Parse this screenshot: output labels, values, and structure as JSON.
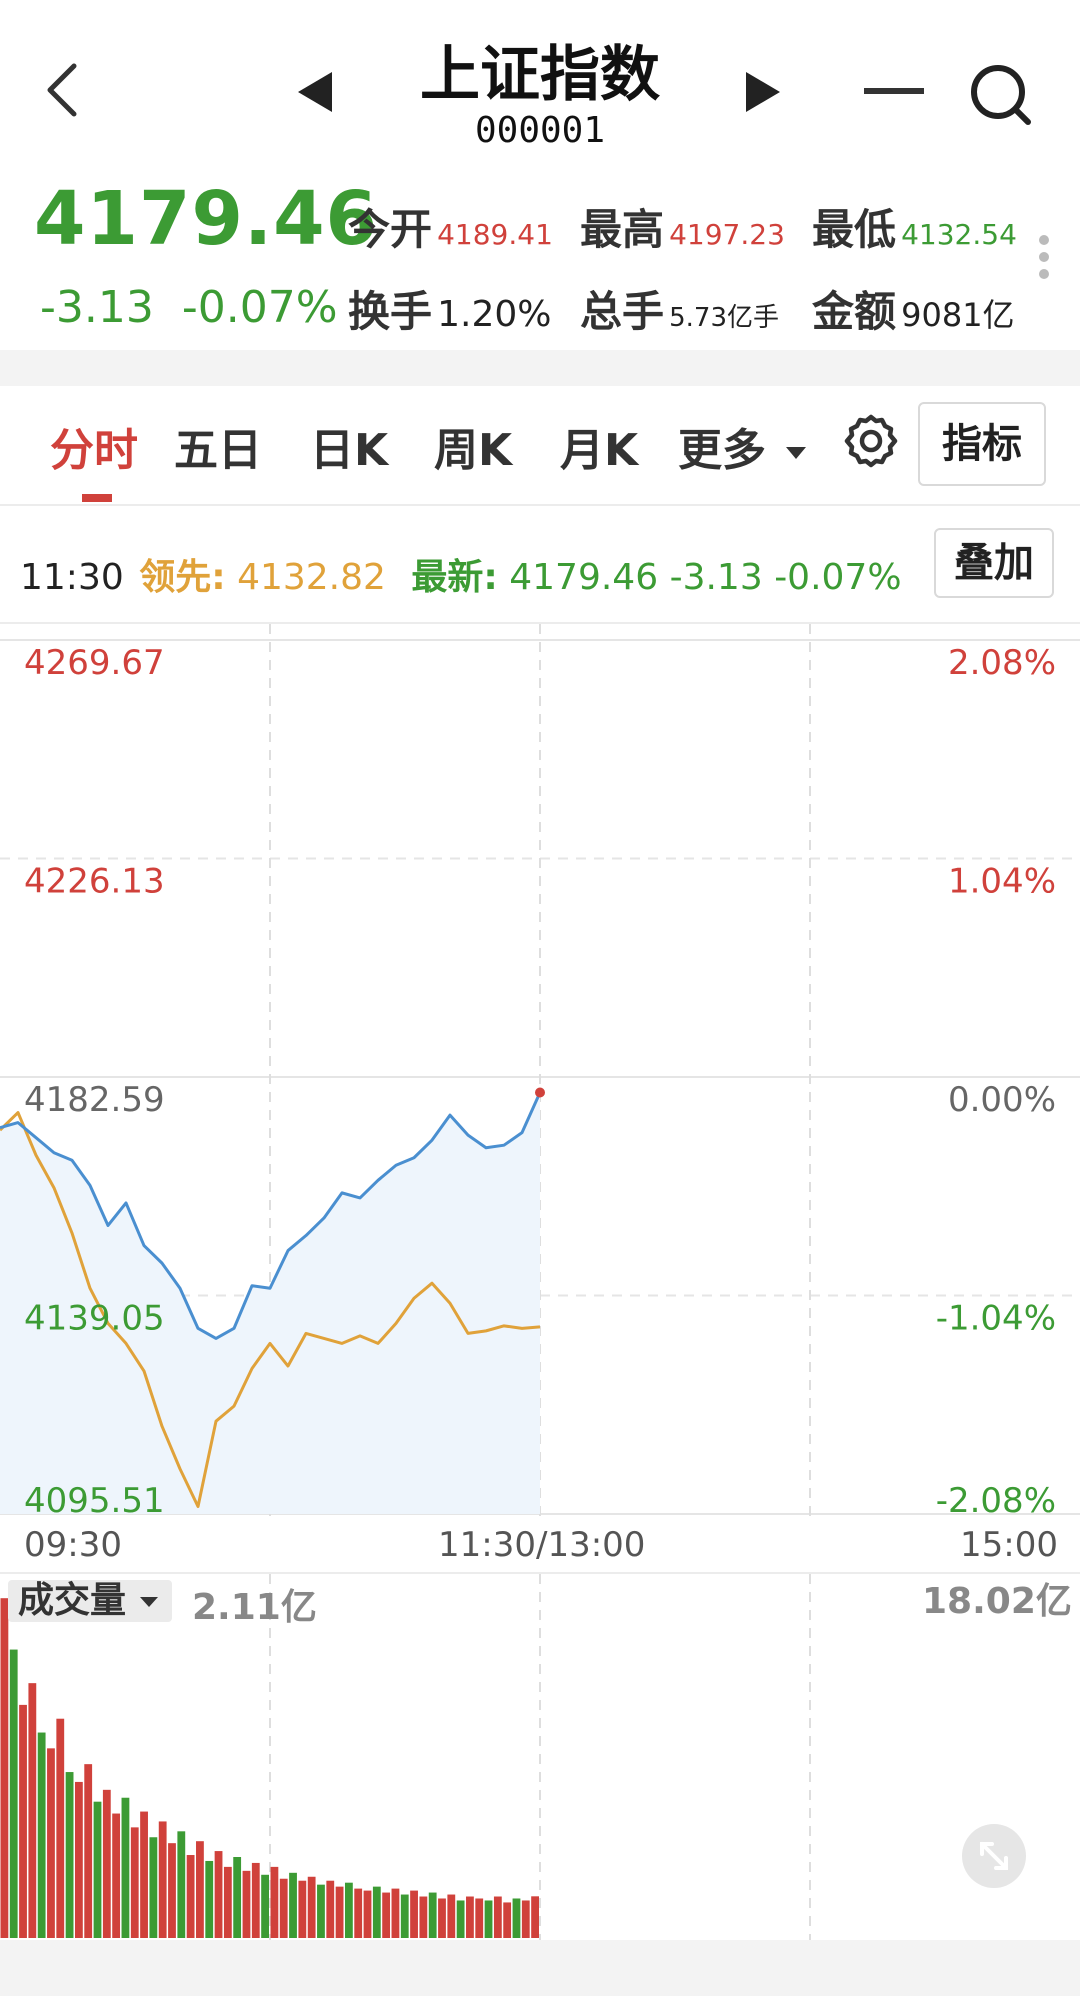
{
  "header": {
    "title": "上证指数",
    "code": "000001"
  },
  "quote": {
    "price": "4179.46",
    "change": "-3.13",
    "change_pct": "-0.07%",
    "open_label": "今开",
    "open_value": "4189.41",
    "high_label": "最高",
    "high_value": "4197.23",
    "low_label": "最低",
    "low_value": "4132.54",
    "turnover_label": "换手",
    "turnover_value": "1.20%",
    "volume_label": "总手",
    "volume_value": "5.73亿手",
    "amount_label": "金额",
    "amount_value": "9081亿"
  },
  "tabs": [
    {
      "label": "分时",
      "active": true
    },
    {
      "label": "五日"
    },
    {
      "label": "日K"
    },
    {
      "label": "周K"
    },
    {
      "label": "月K"
    },
    {
      "label": "更多"
    }
  ],
  "indicator_button": "指标",
  "overlay_button": "叠加",
  "info_line": {
    "time": "11:30",
    "leading_label": "领先:",
    "leading_value": "4132.82",
    "latest_label": "最新:",
    "latest_value": "4179.46",
    "latest_change": "-3.13",
    "latest_pct": "-0.07%"
  },
  "volume_panel": {
    "label": "成交量",
    "current": "2.11亿",
    "max": "18.02亿"
  },
  "colors": {
    "up": "#d0413b",
    "down": "#3c9b34",
    "price_line": "#4a8fd0",
    "leading_line": "#e0a23a",
    "area_fill": "#eef5fc"
  },
  "chart_data": {
    "type": "line",
    "x_ticks": [
      "09:30",
      "11:30/13:00",
      "15:00"
    ],
    "y_left_ticks": [
      "4269.67",
      "4226.13",
      "4182.59",
      "4139.05",
      "4095.51"
    ],
    "y_right_ticks": [
      "2.08%",
      "1.04%",
      "0.00%",
      "-1.04%",
      "-2.08%"
    ],
    "ylim": [
      4095.51,
      4269.67
    ],
    "series": [
      {
        "values": [
          4172.5,
          4173.5,
          4170.5,
          4167.5,
          4166.0,
          4161.0,
          4153.0,
          4157.5,
          4149.0,
          4145.5,
          4140.5,
          4132.5,
          4130.5,
          4132.5,
          4141.0,
          4140.5,
          4148.0,
          4151.0,
          4154.5,
          4159.5,
          4158.5,
          4162.0,
          4165.0,
          4166.5,
          4170.0,
          4175.0,
          4171.0,
          4168.5,
          4169.0,
          4171.5,
          4179.5
        ]
      },
      {
        "values": [
          4172.0,
          4175.5,
          4167.0,
          4160.5,
          4151.5,
          4140.5,
          4133.5,
          4129.5,
          4124.0,
          4113.0,
          4104.5,
          4097.0,
          4114.0,
          4117.0,
          4124.5,
          4129.5,
          4125.0,
          4131.5,
          4130.5,
          4129.5,
          4131.0,
          4129.5,
          4133.5,
          4138.5,
          4141.5,
          4137.5,
          4131.5,
          4132.0,
          4133.0,
          4132.5,
          4132.8
        ]
      }
    ],
    "volume_bars": [
      17.2,
      14.6,
      11.8,
      12.9,
      10.4,
      9.6,
      11.1,
      8.4,
      7.9,
      8.8,
      6.9,
      7.5,
      6.3,
      7.1,
      5.6,
      6.4,
      5.1,
      5.9,
      4.8,
      5.4,
      4.2,
      4.9,
      3.9,
      4.4,
      3.6,
      4.1,
      3.4,
      3.8,
      3.2,
      3.6,
      3.0,
      3.3,
      2.9,
      3.1,
      2.7,
      2.9,
      2.6,
      2.8,
      2.5,
      2.4,
      2.6,
      2.3,
      2.5,
      2.2,
      2.4,
      2.1,
      2.3,
      2.0,
      2.2,
      1.9,
      2.1,
      2.0,
      1.9,
      2.1,
      1.8,
      2.0,
      1.9,
      2.11
    ],
    "volume_ylim": [
      0,
      18.02
    ]
  }
}
